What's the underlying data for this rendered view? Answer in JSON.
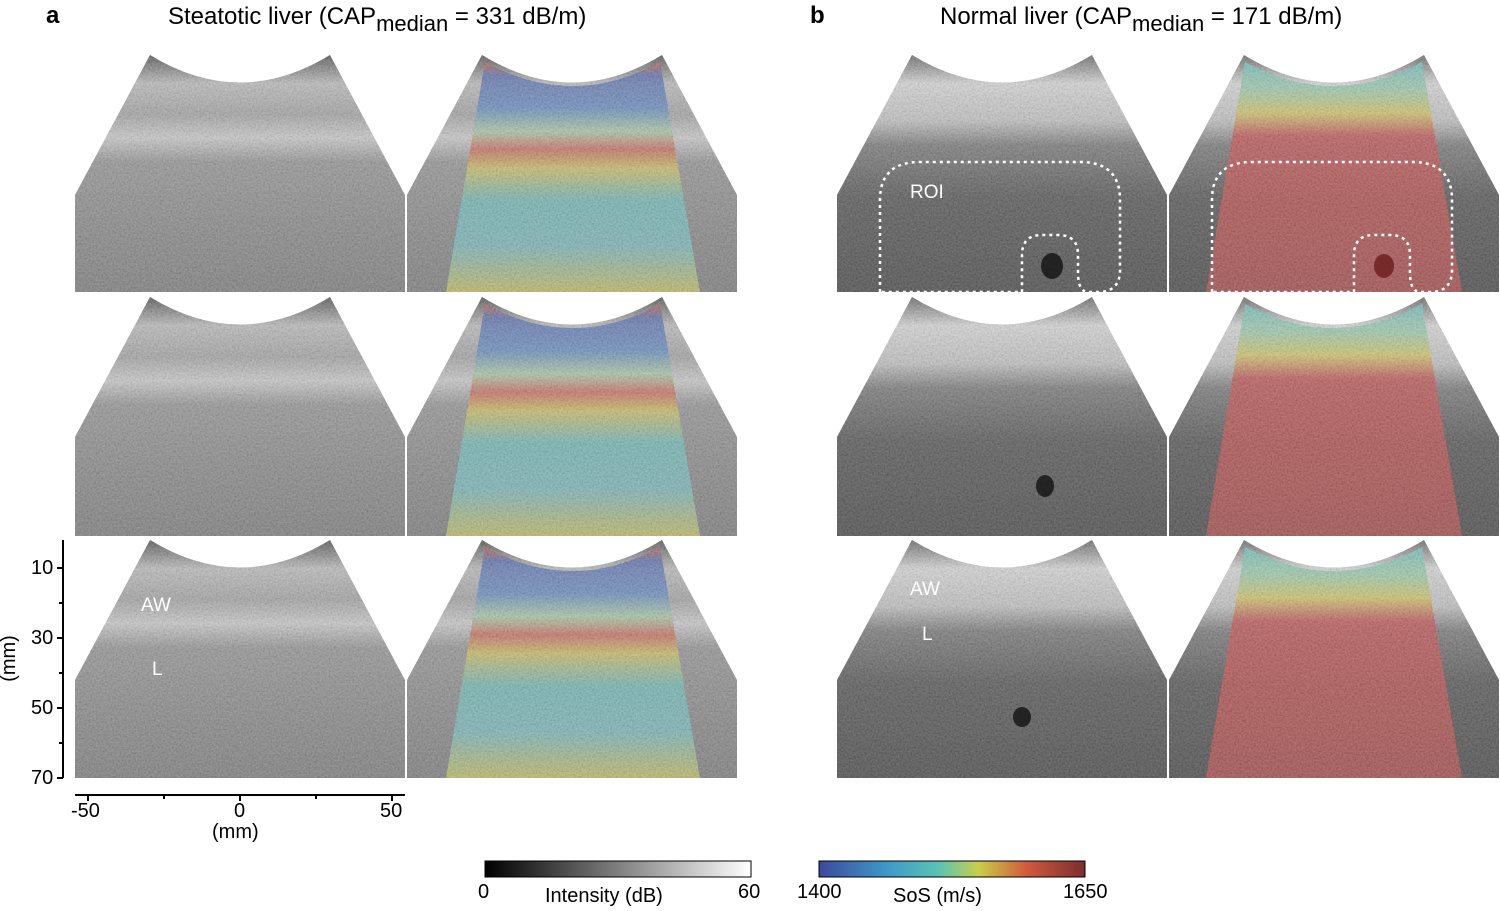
{
  "panels": {
    "a": {
      "letter": "a",
      "title_prefix": "Steatotic liver (CAP",
      "title_sub": "median",
      "title_suffix": " = 331 dB/m)"
    },
    "b": {
      "letter": "b",
      "title_prefix": "Normal liver (CAP",
      "title_sub": "median",
      "title_suffix": " = 171 dB/m)"
    }
  },
  "labels": {
    "aw": "AW",
    "l": "L",
    "roi": "ROI"
  },
  "y_axis": {
    "unit": "(mm)",
    "ticks": [
      "10",
      "30",
      "50",
      "70"
    ]
  },
  "x_axis": {
    "unit": "(mm)",
    "ticks": [
      "-50",
      "0",
      "50"
    ]
  },
  "colorbars": {
    "intensity": {
      "label": "Intensity (dB)",
      "min": "0",
      "max": "60"
    },
    "sos": {
      "label": "SoS (m/s)",
      "min": "1400",
      "max": "1650"
    }
  },
  "colors": {
    "sos_low": "#3a4fa6",
    "sos_mid": "#42b8c2",
    "sos_yellow": "#d8c93a",
    "sos_high": "#c83a35",
    "background": "#ffffff"
  }
}
